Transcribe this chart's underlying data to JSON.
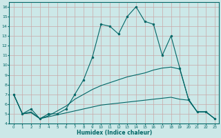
{
  "xlabel": "Humidex (Indice chaleur)",
  "ylabel": "",
  "bg_color": "#cce8e8",
  "grid_color": "#b8d8d8",
  "line_color": "#006666",
  "xlim": [
    -0.5,
    23.5
  ],
  "ylim": [
    4,
    16.5
  ],
  "xticks": [
    0,
    1,
    2,
    3,
    4,
    5,
    6,
    7,
    8,
    9,
    10,
    11,
    12,
    13,
    14,
    15,
    16,
    17,
    18,
    19,
    20,
    21,
    22,
    23
  ],
  "yticks": [
    4,
    5,
    6,
    7,
    8,
    9,
    10,
    11,
    12,
    13,
    14,
    15,
    16
  ],
  "series": [
    {
      "x": [
        0,
        1,
        2,
        3,
        4,
        5,
        6,
        7,
        8,
        9,
        10,
        11,
        12,
        13,
        14,
        15,
        16,
        17,
        18,
        19,
        20,
        21,
        22,
        23
      ],
      "y": [
        7,
        5,
        5.5,
        4.5,
        5,
        5,
        5.5,
        7,
        8.5,
        10.8,
        14.2,
        14,
        13.2,
        15,
        16,
        14.5,
        14.2,
        11,
        13,
        9.7,
        6.5,
        5.2,
        5.2,
        4.5
      ],
      "marker": "o",
      "markersize": 2.0,
      "linewidth": 0.8
    },
    {
      "x": [
        0,
        1,
        2,
        3,
        4,
        5,
        6,
        7,
        8,
        9,
        10,
        11,
        12,
        13,
        14,
        15,
        16,
        17,
        18,
        19,
        20,
        21,
        22,
        23
      ],
      "y": [
        7,
        5,
        5.2,
        4.5,
        4.8,
        5.3,
        5.8,
        6.5,
        7.0,
        7.5,
        7.9,
        8.2,
        8.5,
        8.8,
        9.0,
        9.2,
        9.5,
        9.7,
        9.8,
        9.6,
        6.5,
        5.2,
        5.2,
        4.5
      ],
      "marker": null,
      "markersize": 0,
      "linewidth": 0.8
    },
    {
      "x": [
        0,
        1,
        2,
        3,
        4,
        5,
        6,
        7,
        8,
        9,
        10,
        11,
        12,
        13,
        14,
        15,
        16,
        17,
        18,
        19,
        20,
        21,
        22,
        23
      ],
      "y": [
        7,
        5,
        5.1,
        4.5,
        4.7,
        4.9,
        5.1,
        5.3,
        5.5,
        5.7,
        5.9,
        6.0,
        6.1,
        6.2,
        6.3,
        6.4,
        6.5,
        6.6,
        6.7,
        6.5,
        6.4,
        5.2,
        5.2,
        4.5
      ],
      "marker": null,
      "markersize": 0,
      "linewidth": 0.8
    }
  ]
}
